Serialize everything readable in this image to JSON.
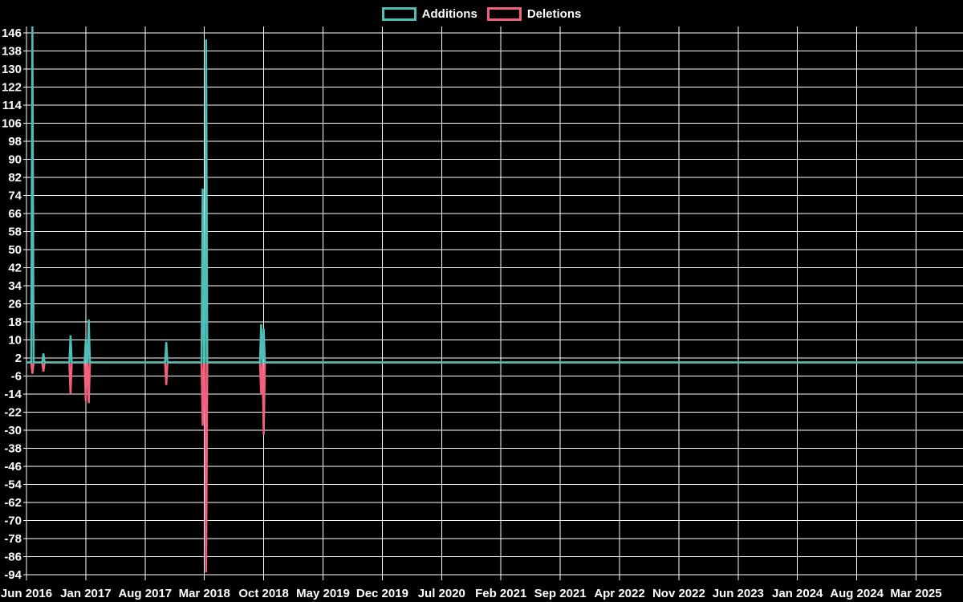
{
  "legend": {
    "additions": "Additions",
    "deletions": "Deletions"
  },
  "colors": {
    "additions": "#4dbfb7",
    "deletions": "#f3607e",
    "grid": "#ffffff",
    "text": "#ffffff",
    "background": "#000000"
  },
  "chart_data": {
    "type": "line",
    "title": "",
    "description": "Weekly additions (positive spikes) and deletions (negative spikes) over time; both series sit flat at 0 between activity bursts and remain 0 from late 2018 through 2025",
    "legend_position": "top-center",
    "grid": true,
    "baseline_value": 0,
    "x_axis": {
      "start_month": "Jun 2016",
      "months_between_ticks": 7,
      "tick_labels": [
        "Jun 2016",
        "Jan 2017",
        "Aug 2017",
        "Mar 2018",
        "Oct 2018",
        "May 2019",
        "Dec 2019",
        "Jul 2020",
        "Feb 2021",
        "Sep 2021",
        "Apr 2022",
        "Nov 2022",
        "Jun 2023",
        "Jan 2024",
        "Aug 2024",
        "Mar 2025"
      ]
    },
    "y_axis": {
      "tick_max": 146,
      "tick_min": -94,
      "tick_step": 8,
      "ylim": [
        -96.5,
        148.8
      ]
    },
    "series": [
      {
        "name": "Additions",
        "sign": 1,
        "color_key": "additions"
      },
      {
        "name": "Deletions",
        "sign": -1,
        "color_key": "deletions"
      }
    ],
    "events": [
      {
        "approx_date": "Jun 2016",
        "months_from_start": 0.7,
        "additions": 149,
        "deletions": 5
      },
      {
        "approx_date": "Aug 2016",
        "months_from_start": 2.0,
        "additions": 4,
        "deletions": 4
      },
      {
        "approx_date": "Nov 2016",
        "months_from_start": 5.2,
        "additions": 12,
        "deletions": 14
      },
      {
        "approx_date": "Jan 2017",
        "months_from_start": 7.0,
        "additions": 10,
        "deletions": 17
      },
      {
        "approx_date": "Jan 2017",
        "months_from_start": 7.35,
        "additions": 19,
        "deletions": 18
      },
      {
        "approx_date": "Oct 2017",
        "months_from_start": 16.5,
        "additions": 9,
        "deletions": 10
      },
      {
        "approx_date": "Feb 2018",
        "months_from_start": 20.8,
        "additions": 77,
        "deletions": 28
      },
      {
        "approx_date": "Mar 2018",
        "months_from_start": 21.2,
        "additions": 143,
        "deletions": 93
      },
      {
        "approx_date": "Sep 2018",
        "months_from_start": 27.7,
        "additions": 17,
        "deletions": 14
      },
      {
        "approx_date": "Oct 2018",
        "months_from_start": 28.0,
        "additions": 15,
        "deletions": 32
      }
    ]
  }
}
